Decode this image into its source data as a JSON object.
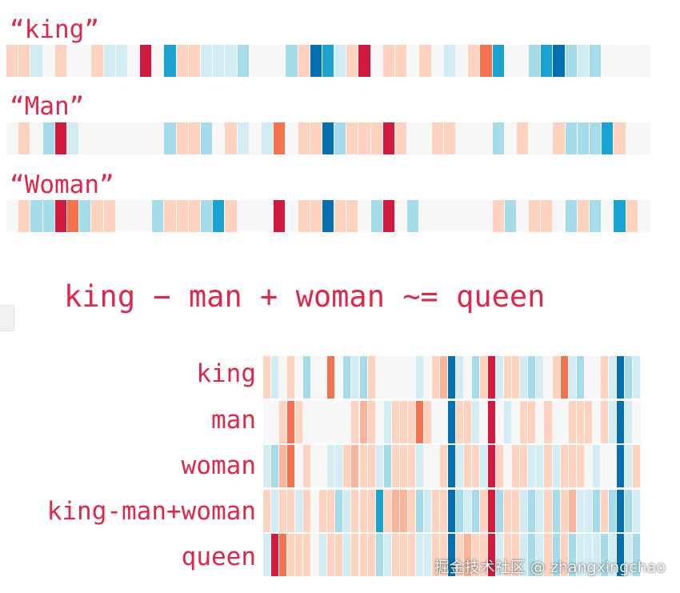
{
  "palette": {
    "0": "#f7f7f7",
    "1": "#fdd3c0",
    "2": "#f9b499",
    "3": "#f4724f",
    "4": "#d2193e",
    "5": "#d2ecf3",
    "6": "#a6dbe9",
    "7": "#1aa2d1",
    "8": "#0570b0"
  },
  "top_words": [
    {
      "label": "“king”",
      "cells": [
        1,
        1,
        5,
        0,
        1,
        0,
        0,
        1,
        5,
        5,
        0,
        4,
        0,
        7,
        1,
        1,
        5,
        5,
        5,
        6,
        0,
        0,
        0,
        6,
        1,
        8,
        7,
        5,
        1,
        4,
        0,
        1,
        1,
        0,
        1,
        0,
        5,
        0,
        1,
        3,
        7,
        0,
        0,
        6,
        7,
        8,
        6,
        5,
        6,
        0,
        0,
        0,
        0
      ]
    },
    {
      "label": "“Man”",
      "cells": [
        0,
        1,
        0,
        6,
        4,
        5,
        0,
        0,
        0,
        0,
        0,
        0,
        0,
        6,
        1,
        1,
        6,
        0,
        1,
        5,
        0,
        5,
        3,
        0,
        1,
        1,
        8,
        6,
        1,
        1,
        1,
        4,
        1,
        0,
        0,
        1,
        1,
        0,
        0,
        0,
        6,
        0,
        1,
        0,
        0,
        1,
        6,
        6,
        6,
        7,
        1,
        0,
        0
      ]
    },
    {
      "label": "“Woman”",
      "cells": [
        0,
        1,
        6,
        6,
        4,
        3,
        6,
        1,
        1,
        0,
        0,
        0,
        6,
        1,
        1,
        1,
        6,
        7,
        1,
        0,
        0,
        0,
        4,
        0,
        1,
        1,
        8,
        1,
        1,
        0,
        6,
        4,
        0,
        6,
        0,
        0,
        0,
        0,
        0,
        0,
        1,
        6,
        0,
        1,
        1,
        0,
        6,
        1,
        6,
        0,
        7,
        1,
        0
      ]
    }
  ],
  "equation": "king − man + woman ~= queen",
  "grid_rows": [
    {
      "label": "king",
      "cells": [
        1,
        5,
        0,
        1,
        0,
        6,
        0,
        0,
        3,
        0,
        6,
        5,
        6,
        1,
        0,
        0,
        0,
        0,
        0,
        5,
        0,
        1,
        2,
        8,
        5,
        0,
        6,
        1,
        4,
        5,
        1,
        1,
        5,
        6,
        5,
        0,
        1,
        3,
        5,
        6,
        0,
        0,
        1,
        5,
        8,
        6,
        5
      ]
    },
    {
      "label": "man",
      "cells": [
        0,
        0,
        1,
        3,
        1,
        0,
        0,
        0,
        0,
        0,
        0,
        1,
        2,
        1,
        0,
        5,
        1,
        1,
        1,
        3,
        1,
        0,
        0,
        8,
        1,
        1,
        5,
        0,
        4,
        0,
        5,
        0,
        1,
        1,
        0,
        1,
        0,
        0,
        1,
        1,
        1,
        0,
        1,
        5,
        8,
        5,
        0
      ]
    },
    {
      "label": "woman",
      "cells": [
        5,
        6,
        2,
        3,
        0,
        1,
        0,
        0,
        5,
        5,
        1,
        2,
        1,
        1,
        5,
        6,
        1,
        1,
        1,
        5,
        0,
        0,
        1,
        8,
        5,
        1,
        1,
        5,
        4,
        1,
        0,
        1,
        1,
        5,
        5,
        1,
        5,
        1,
        1,
        1,
        0,
        5,
        0,
        0,
        8,
        5,
        1
      ]
    },
    {
      "label": "king-man+woman",
      "cells": [
        1,
        5,
        1,
        1,
        5,
        1,
        0,
        1,
        1,
        6,
        5,
        1,
        1,
        1,
        7,
        1,
        2,
        2,
        1,
        6,
        5,
        1,
        1,
        8,
        6,
        5,
        6,
        1,
        4,
        6,
        1,
        1,
        5,
        6,
        5,
        1,
        6,
        1,
        2,
        5,
        5,
        6,
        1,
        6,
        8,
        6,
        5
      ]
    },
    {
      "label": "queen",
      "cells": [
        5,
        4,
        3,
        1,
        1,
        1,
        0,
        5,
        1,
        1,
        5,
        1,
        1,
        1,
        6,
        5,
        1,
        1,
        1,
        5,
        5,
        1,
        1,
        8,
        1,
        2,
        1,
        1,
        4,
        5,
        1,
        1,
        5,
        6,
        5,
        1,
        6,
        1,
        6,
        5,
        5,
        5,
        6,
        5,
        8,
        5,
        6
      ]
    }
  ],
  "watermark": "掘金技术社区 @ zhangxingchao"
}
